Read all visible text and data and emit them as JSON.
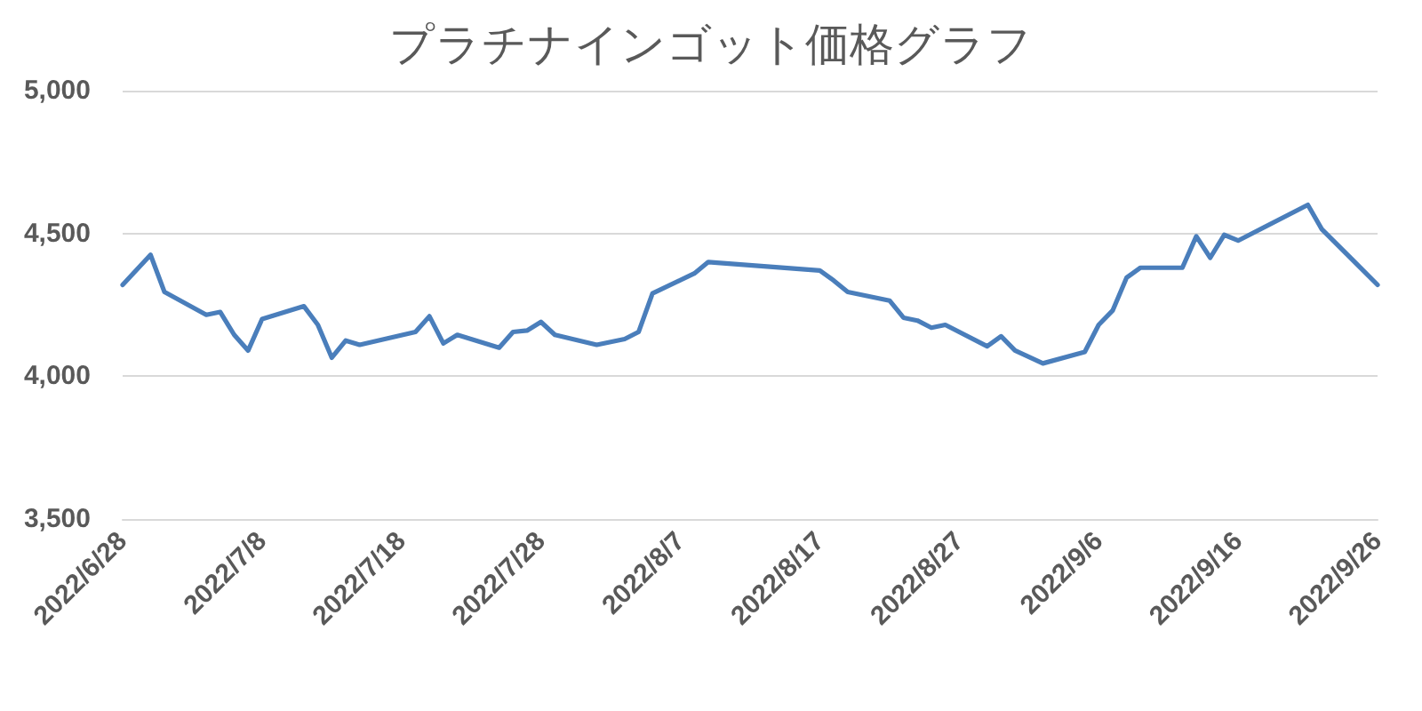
{
  "chart_data": {
    "type": "line",
    "title": "プラチナインゴット価格グラフ",
    "x": [
      "2022-06-28",
      "2022-06-30",
      "2022-07-01",
      "2022-07-04",
      "2022-07-05",
      "2022-07-06",
      "2022-07-07",
      "2022-07-08",
      "2022-07-11",
      "2022-07-12",
      "2022-07-13",
      "2022-07-14",
      "2022-07-15",
      "2022-07-19",
      "2022-07-20",
      "2022-07-21",
      "2022-07-22",
      "2022-07-25",
      "2022-07-26",
      "2022-07-27",
      "2022-07-28",
      "2022-07-29",
      "2022-08-01",
      "2022-08-03",
      "2022-08-04",
      "2022-08-05",
      "2022-08-08",
      "2022-08-09",
      "2022-08-17",
      "2022-08-18",
      "2022-08-19",
      "2022-08-22",
      "2022-08-23",
      "2022-08-24",
      "2022-08-25",
      "2022-08-26",
      "2022-08-29",
      "2022-08-30",
      "2022-08-31",
      "2022-09-02",
      "2022-09-05",
      "2022-09-06",
      "2022-09-07",
      "2022-09-08",
      "2022-09-09",
      "2022-09-12",
      "2022-09-13",
      "2022-09-14",
      "2022-09-15",
      "2022-09-16",
      "2022-09-21",
      "2022-09-22",
      "2022-09-26"
    ],
    "series": [
      {
        "color": "#4a7ebb",
        "values": [
          4320,
          4425,
          4295,
          4215,
          4225,
          4145,
          4090,
          4200,
          4245,
          4180,
          4065,
          4125,
          4110,
          4155,
          4210,
          4115,
          4145,
          4100,
          4155,
          4160,
          4190,
          4145,
          4110,
          4130,
          4155,
          4290,
          4360,
          4400,
          4370,
          4335,
          4295,
          4265,
          4205,
          4195,
          4170,
          4180,
          4105,
          4140,
          4090,
          4045,
          4085,
          4180,
          4230,
          4345,
          4380,
          4380,
          4490,
          4415,
          4495,
          4475,
          4600,
          4515,
          4320
        ]
      }
    ],
    "xlim": [
      "2022-06-28",
      "2022-09-26"
    ],
    "xticks": [
      {
        "value": "2022-06-28",
        "label": "2022/6/28"
      },
      {
        "value": "2022-07-08",
        "label": "2022/7/8"
      },
      {
        "value": "2022-07-18",
        "label": "2022/7/18"
      },
      {
        "value": "2022-07-28",
        "label": "2022/7/28"
      },
      {
        "value": "2022-08-07",
        "label": "2022/8/7"
      },
      {
        "value": "2022-08-17",
        "label": "2022/8/17"
      },
      {
        "value": "2022-08-27",
        "label": "2022/8/27"
      },
      {
        "value": "2022-09-06",
        "label": "2022/9/6"
      },
      {
        "value": "2022-09-16",
        "label": "2022/9/16"
      },
      {
        "value": "2022-09-26",
        "label": "2022/9/26"
      }
    ],
    "ylim": [
      3500,
      5000
    ],
    "yticks": [
      {
        "value": 3500,
        "label": "3,500"
      },
      {
        "value": 4000,
        "label": "4,000"
      },
      {
        "value": 4500,
        "label": "4,500"
      },
      {
        "value": 5000,
        "label": "5,000"
      }
    ],
    "grid": "y",
    "marker": "none",
    "line_style": "solid"
  }
}
